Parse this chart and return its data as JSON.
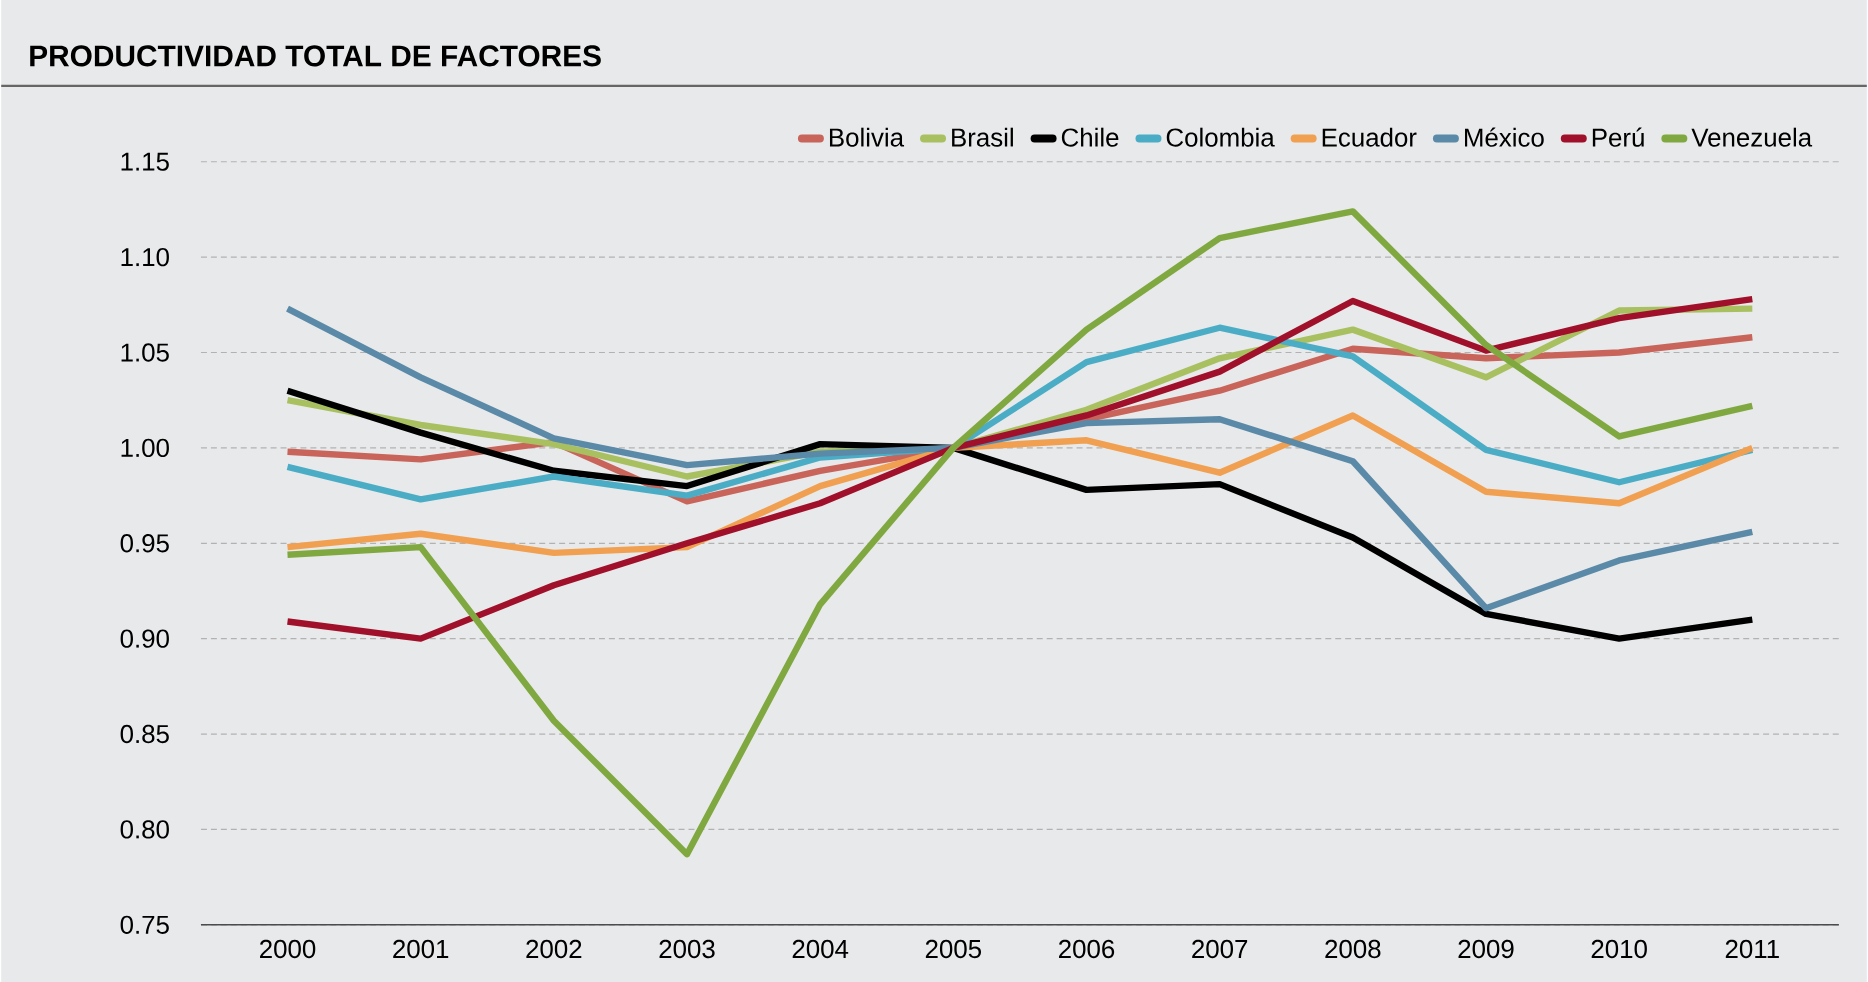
{
  "chart_data": {
    "type": "line",
    "title": "PRODUCTIVIDAD TOTAL DE FACTORES",
    "categories": [
      "2000",
      "2001",
      "2002",
      "2003",
      "2004",
      "2005",
      "2006",
      "2007",
      "2008",
      "2009",
      "2010",
      "2011"
    ],
    "series": [
      {
        "name": "Bolivia",
        "color": "#c8645a",
        "values": [
          0.998,
          0.994,
          1.003,
          0.972,
          0.988,
          1.0,
          1.015,
          1.03,
          1.052,
          1.047,
          1.05,
          1.058
        ]
      },
      {
        "name": "Brasil",
        "color": "#a8c060",
        "values": [
          1.025,
          1.012,
          1.002,
          0.985,
          0.998,
          1.0,
          1.02,
          1.047,
          1.062,
          1.037,
          1.072,
          1.073
        ]
      },
      {
        "name": "Chile",
        "color": "#000000",
        "values": [
          1.03,
          1.008,
          0.988,
          0.98,
          1.002,
          1.0,
          0.978,
          0.981,
          0.953,
          0.913,
          0.9,
          0.91
        ]
      },
      {
        "name": "Colombia",
        "color": "#4bacc6",
        "values": [
          0.99,
          0.973,
          0.985,
          0.975,
          0.995,
          1.0,
          1.045,
          1.063,
          1.048,
          0.999,
          0.982,
          0.999
        ]
      },
      {
        "name": "Ecuador",
        "color": "#f0a050",
        "values": [
          0.948,
          0.955,
          0.945,
          0.948,
          0.98,
          1.0,
          1.004,
          0.987,
          1.017,
          0.977,
          0.971,
          1.0
        ]
      },
      {
        "name": "México",
        "color": "#5a8aa8",
        "values": [
          1.073,
          1.037,
          1.005,
          0.991,
          0.997,
          1.0,
          1.013,
          1.015,
          0.993,
          0.916,
          0.941,
          0.956
        ]
      },
      {
        "name": "Perú",
        "color": "#a0102a",
        "values": [
          0.909,
          0.9,
          0.928,
          0.95,
          0.971,
          1.0,
          1.017,
          1.04,
          1.077,
          1.051,
          1.068,
          1.078
        ]
      },
      {
        "name": "Venezuela",
        "color": "#80a840",
        "values": [
          0.944,
          0.948,
          0.857,
          0.787,
          0.918,
          1.0,
          1.062,
          1.11,
          1.124,
          1.054,
          1.006,
          1.022
        ]
      }
    ],
    "ylim": [
      0.75,
      1.15
    ],
    "yticks": [
      {
        "value": 0.75,
        "label": "0.75"
      },
      {
        "value": 0.8,
        "label": "0.80"
      },
      {
        "value": 0.85,
        "label": "0.85"
      },
      {
        "value": 0.9,
        "label": "0.90"
      },
      {
        "value": 0.95,
        "label": "0.95"
      },
      {
        "value": 1.0,
        "label": "1.00"
      },
      {
        "value": 1.05,
        "label": "1.05"
      },
      {
        "value": 1.1,
        "label": "1.10"
      },
      {
        "value": 1.15,
        "label": "1.15"
      }
    ],
    "grid": "y",
    "legend": "top right",
    "marker": "none",
    "line_style": "solid"
  }
}
